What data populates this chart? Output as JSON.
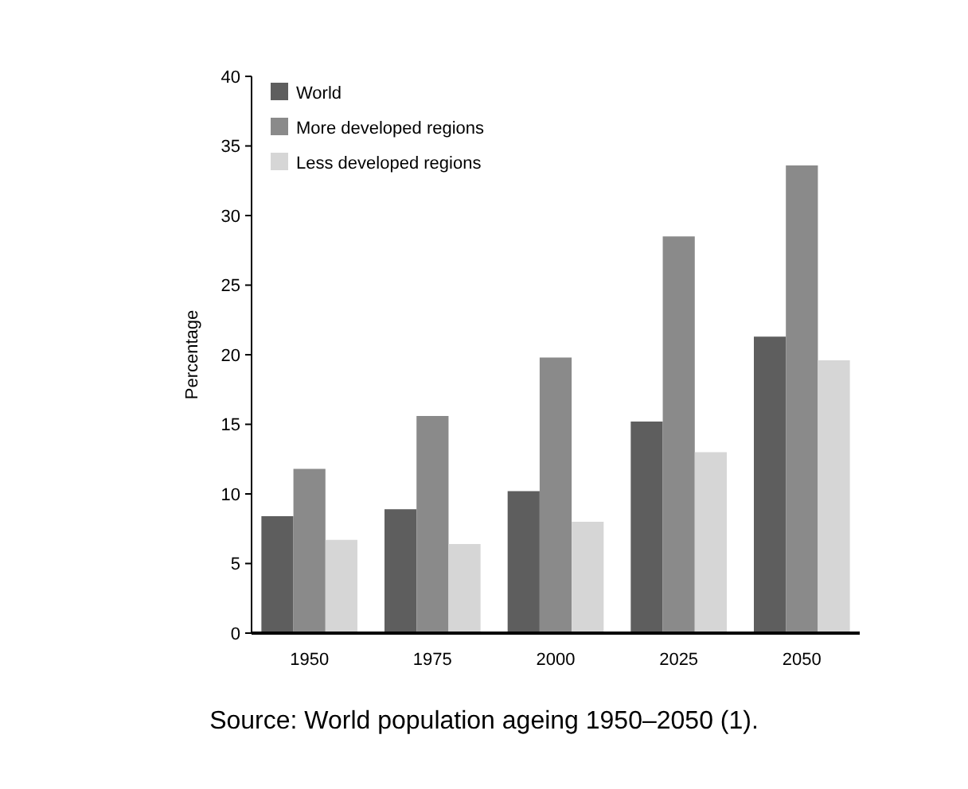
{
  "chart_data": {
    "type": "bar",
    "ylabel": "Percentage",
    "categories": [
      "1950",
      "1975",
      "2000",
      "2025",
      "2050"
    ],
    "series": [
      {
        "name": "World",
        "color": "#5e5e5e",
        "values": [
          8.4,
          8.9,
          10.2,
          15.2,
          21.3
        ]
      },
      {
        "name": "More developed regions",
        "color": "#8a8a8a",
        "values": [
          11.8,
          15.6,
          19.8,
          28.5,
          33.6
        ]
      },
      {
        "name": "Less developed regions",
        "color": "#d6d6d6",
        "values": [
          6.7,
          6.4,
          8.0,
          13.0,
          19.6
        ]
      }
    ],
    "ylim": [
      0,
      40
    ],
    "yticks": [
      0,
      5,
      10,
      15,
      20,
      25,
      30,
      35,
      40
    ],
    "grid": false,
    "legend": "top left",
    "annotations": [
      "Source: World population ageing 1950–2050 (1)."
    ]
  }
}
